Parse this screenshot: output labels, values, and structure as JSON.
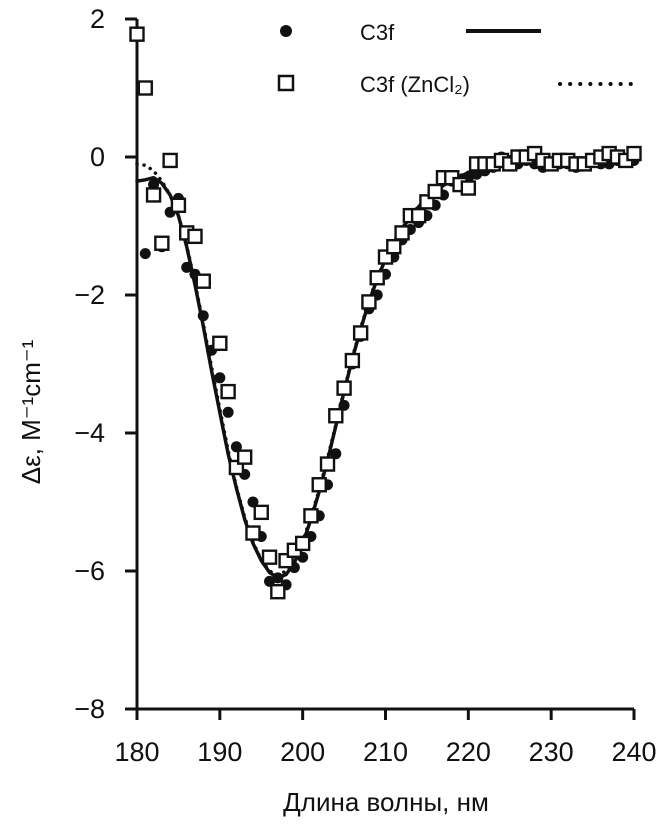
{
  "chart_data": {
    "type": "scatter",
    "xlabel": "Длина волны, нм",
    "ylabel": "Δε, М⁻¹cm⁻¹",
    "xlim": [
      180,
      240
    ],
    "ylim": [
      -8,
      2
    ],
    "xticks": [
      180,
      190,
      200,
      210,
      220,
      230,
      240
    ],
    "yticks": [
      2,
      0,
      -2,
      -4,
      -6,
      -8
    ],
    "grid": false,
    "legend_position": "top",
    "series": [
      {
        "name": "C3f",
        "marker": "filled-circle",
        "line_style": "solid",
        "color": "#111111",
        "points": [
          [
            181,
            -1.4
          ],
          [
            182,
            -0.4
          ],
          [
            183,
            -1.3
          ],
          [
            184,
            -0.8
          ],
          [
            185,
            -0.6
          ],
          [
            186,
            -1.6
          ],
          [
            187,
            -1.7
          ],
          [
            188,
            -2.3
          ],
          [
            189,
            -2.8
          ],
          [
            190,
            -3.2
          ],
          [
            191,
            -3.7
          ],
          [
            192,
            -4.2
          ],
          [
            193,
            -4.6
          ],
          [
            194,
            -5.0
          ],
          [
            195,
            -5.5
          ],
          [
            196,
            -6.15
          ],
          [
            197,
            -6.1
          ],
          [
            198,
            -6.2
          ],
          [
            199,
            -5.95
          ],
          [
            200,
            -5.8
          ],
          [
            201,
            -5.5
          ],
          [
            202,
            -5.2
          ],
          [
            203,
            -4.75
          ],
          [
            204,
            -4.3
          ],
          [
            205,
            -3.6
          ],
          [
            206,
            -3.0
          ],
          [
            207,
            -2.6
          ],
          [
            208,
            -2.2
          ],
          [
            209,
            -2.0
          ],
          [
            210,
            -1.7
          ],
          [
            211,
            -1.45
          ],
          [
            212,
            -1.2
          ],
          [
            213,
            -1.05
          ],
          [
            214,
            -0.95
          ],
          [
            215,
            -0.85
          ],
          [
            216,
            -0.7
          ],
          [
            217,
            -0.55
          ],
          [
            218,
            -0.35
          ],
          [
            219,
            -0.35
          ],
          [
            220,
            -0.3
          ],
          [
            221,
            -0.25
          ],
          [
            222,
            -0.2
          ],
          [
            223,
            -0.15
          ],
          [
            224,
            0.0
          ],
          [
            225,
            -0.05
          ],
          [
            226,
            -0.1
          ],
          [
            227,
            -0.05
          ],
          [
            228,
            -0.1
          ],
          [
            229,
            -0.15
          ],
          [
            230,
            -0.1
          ],
          [
            231,
            -0.1
          ],
          [
            232,
            -0.1
          ],
          [
            233,
            -0.15
          ],
          [
            234,
            -0.1
          ],
          [
            235,
            -0.05
          ],
          [
            236,
            -0.1
          ],
          [
            237,
            -0.1
          ],
          [
            238,
            -0.05
          ],
          [
            239,
            -0.05
          ],
          [
            240,
            -0.05
          ]
        ],
        "fit": [
          [
            180,
            -0.35
          ],
          [
            181,
            -0.33
          ],
          [
            182,
            -0.3
          ],
          [
            183,
            -0.38
          ],
          [
            184,
            -0.55
          ],
          [
            185,
            -0.85
          ],
          [
            186,
            -1.3
          ],
          [
            187,
            -1.85
          ],
          [
            188,
            -2.45
          ],
          [
            189,
            -3.1
          ],
          [
            190,
            -3.7
          ],
          [
            191,
            -4.3
          ],
          [
            192,
            -4.8
          ],
          [
            193,
            -5.25
          ],
          [
            194,
            -5.6
          ],
          [
            195,
            -5.85
          ],
          [
            196,
            -6.02
          ],
          [
            197,
            -6.1
          ],
          [
            198,
            -6.05
          ],
          [
            199,
            -5.88
          ],
          [
            200,
            -5.6
          ],
          [
            201,
            -5.25
          ],
          [
            202,
            -4.85
          ],
          [
            203,
            -4.4
          ],
          [
            204,
            -3.9
          ],
          [
            205,
            -3.4
          ],
          [
            206,
            -2.92
          ],
          [
            207,
            -2.5
          ],
          [
            208,
            -2.1
          ],
          [
            209,
            -1.77
          ],
          [
            210,
            -1.48
          ],
          [
            211,
            -1.24
          ],
          [
            212,
            -1.04
          ],
          [
            213,
            -0.87
          ],
          [
            214,
            -0.72
          ],
          [
            215,
            -0.6
          ],
          [
            216,
            -0.5
          ],
          [
            217,
            -0.41
          ],
          [
            218,
            -0.34
          ],
          [
            219,
            -0.28
          ],
          [
            220,
            -0.23
          ],
          [
            221,
            -0.19
          ],
          [
            222,
            -0.16
          ],
          [
            223,
            -0.14
          ],
          [
            224,
            -0.12
          ],
          [
            226,
            -0.1
          ],
          [
            228,
            -0.09
          ],
          [
            230,
            -0.08
          ],
          [
            232,
            -0.07
          ],
          [
            234,
            -0.06
          ],
          [
            236,
            -0.05
          ],
          [
            238,
            -0.04
          ],
          [
            240,
            -0.03
          ]
        ]
      },
      {
        "name": "C3f (ZnCl₂)",
        "marker": "open-square",
        "line_style": "dotted",
        "color": "#111111",
        "points": [
          [
            180,
            1.78
          ],
          [
            181,
            1.0
          ],
          [
            182,
            -0.55
          ],
          [
            183,
            -1.25
          ],
          [
            184,
            -0.05
          ],
          [
            185,
            -0.7
          ],
          [
            186,
            -1.1
          ],
          [
            187,
            -1.15
          ],
          [
            188,
            -1.8
          ],
          [
            190,
            -2.7
          ],
          [
            191,
            -3.4
          ],
          [
            192,
            -4.5
          ],
          [
            193,
            -4.35
          ],
          [
            194,
            -5.45
          ],
          [
            195,
            -5.15
          ],
          [
            196,
            -5.8
          ],
          [
            197,
            -6.3
          ],
          [
            198,
            -5.85
          ],
          [
            199,
            -5.7
          ],
          [
            200,
            -5.6
          ],
          [
            201,
            -5.2
          ],
          [
            202,
            -4.75
          ],
          [
            203,
            -4.45
          ],
          [
            204,
            -3.75
          ],
          [
            205,
            -3.35
          ],
          [
            206,
            -2.95
          ],
          [
            207,
            -2.55
          ],
          [
            208,
            -2.1
          ],
          [
            209,
            -1.75
          ],
          [
            210,
            -1.45
          ],
          [
            211,
            -1.3
          ],
          [
            212,
            -1.1
          ],
          [
            213,
            -0.85
          ],
          [
            214,
            -0.85
          ],
          [
            215,
            -0.65
          ],
          [
            216,
            -0.5
          ],
          [
            217,
            -0.3
          ],
          [
            218,
            -0.3
          ],
          [
            219,
            -0.4
          ],
          [
            220,
            -0.45
          ],
          [
            221,
            -0.1
          ],
          [
            222,
            -0.1
          ],
          [
            223,
            -0.1
          ],
          [
            224,
            -0.05
          ],
          [
            225,
            -0.1
          ],
          [
            226,
            0.0
          ],
          [
            227,
            0.0
          ],
          [
            228,
            0.05
          ],
          [
            229,
            -0.05
          ],
          [
            230,
            -0.1
          ],
          [
            231,
            -0.05
          ],
          [
            232,
            -0.05
          ],
          [
            233,
            -0.1
          ],
          [
            234,
            -0.1
          ],
          [
            235,
            -0.05
          ],
          [
            236,
            0.0
          ],
          [
            237,
            0.05
          ],
          [
            238,
            0.0
          ],
          [
            239,
            -0.05
          ],
          [
            240,
            0.05
          ]
        ],
        "fit": [
          [
            180,
            -0.1
          ],
          [
            181,
            -0.12
          ],
          [
            182,
            -0.2
          ],
          [
            183,
            -0.35
          ],
          [
            184,
            -0.55
          ],
          [
            185,
            -0.85
          ],
          [
            186,
            -1.28
          ],
          [
            187,
            -1.82
          ],
          [
            188,
            -2.42
          ],
          [
            189,
            -3.05
          ],
          [
            190,
            -3.65
          ],
          [
            191,
            -4.25
          ],
          [
            192,
            -4.78
          ],
          [
            193,
            -5.22
          ],
          [
            194,
            -5.58
          ],
          [
            195,
            -5.84
          ],
          [
            196,
            -6.0
          ],
          [
            197,
            -6.06
          ],
          [
            198,
            -6.0
          ],
          [
            199,
            -5.84
          ],
          [
            200,
            -5.57
          ],
          [
            201,
            -5.22
          ],
          [
            202,
            -4.82
          ],
          [
            203,
            -4.37
          ],
          [
            204,
            -3.88
          ],
          [
            205,
            -3.38
          ],
          [
            206,
            -2.9
          ],
          [
            207,
            -2.48
          ],
          [
            208,
            -2.08
          ],
          [
            209,
            -1.75
          ],
          [
            210,
            -1.47
          ],
          [
            211,
            -1.23
          ],
          [
            212,
            -1.03
          ],
          [
            213,
            -0.86
          ],
          [
            214,
            -0.71
          ],
          [
            215,
            -0.59
          ],
          [
            216,
            -0.49
          ],
          [
            217,
            -0.4
          ],
          [
            218,
            -0.33
          ],
          [
            219,
            -0.27
          ],
          [
            220,
            -0.22
          ],
          [
            221,
            -0.18
          ],
          [
            222,
            -0.15
          ],
          [
            223,
            -0.13
          ],
          [
            224,
            -0.11
          ],
          [
            226,
            -0.09
          ],
          [
            228,
            -0.08
          ],
          [
            230,
            -0.07
          ],
          [
            232,
            -0.06
          ],
          [
            234,
            -0.05
          ],
          [
            236,
            -0.04
          ],
          [
            238,
            -0.03
          ],
          [
            240,
            -0.02
          ]
        ]
      }
    ]
  }
}
